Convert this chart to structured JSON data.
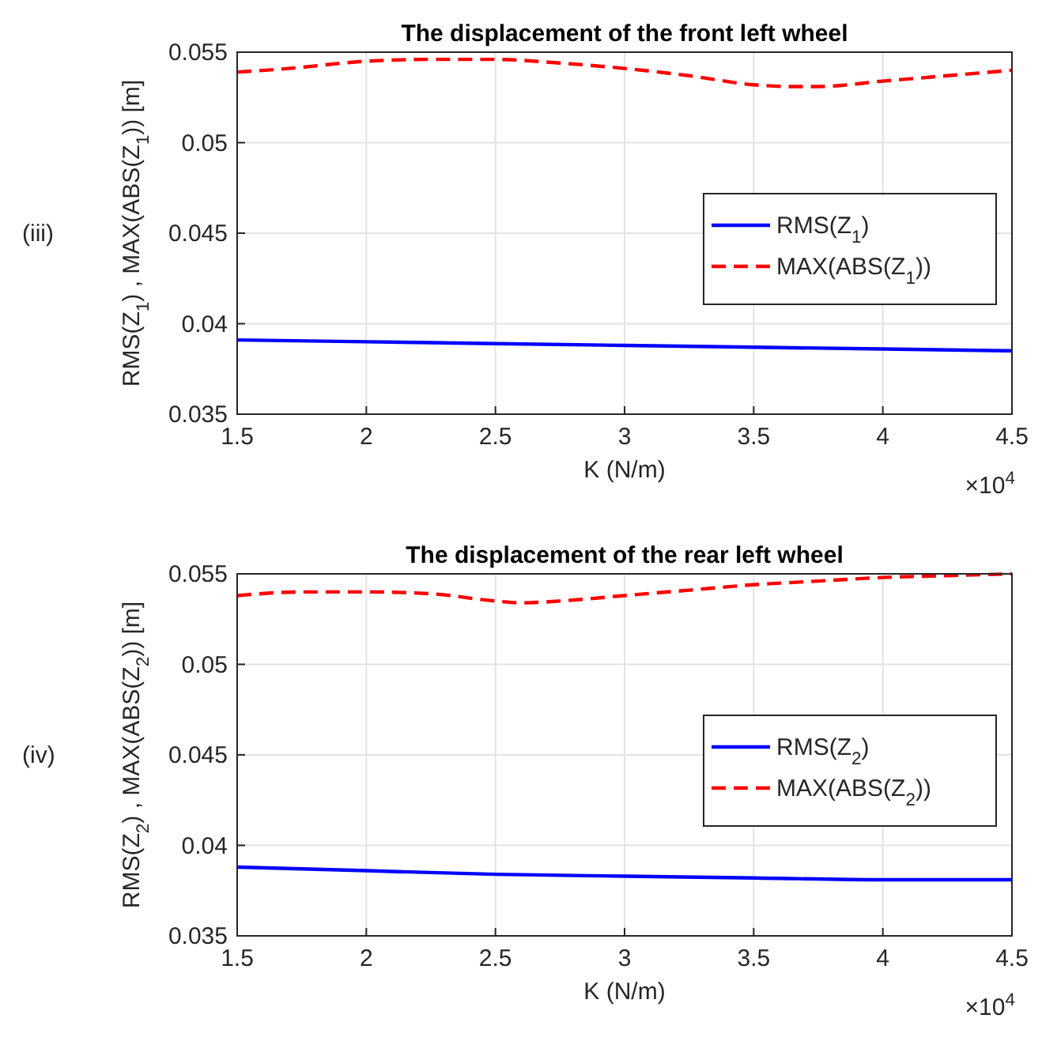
{
  "chart_data": [
    {
      "type": "line",
      "title": "The displacement of the front left wheel",
      "xlabel": "K (N/m)",
      "ylabel": "RMS(Z$_{1}$) , MAX(ABS(Z$_{1}$)) [m]",
      "annotations": [
        "(iii)",
        "×10$^{4}$"
      ],
      "xlim": [
        1.5,
        4.5
      ],
      "xticks": [
        1.5,
        2,
        2.5,
        3,
        3.5,
        4,
        4.5
      ],
      "ylim": [
        0.035,
        0.055
      ],
      "yticks": [
        0.035,
        0.04,
        0.045,
        0.05,
        0.055
      ],
      "grid": true,
      "legend": "right",
      "series": [
        {
          "name": "RMS(Z$_{1}$)",
          "color": "#0000ff",
          "line_style": "solid",
          "x": [
            1.5,
            2,
            2.5,
            3,
            3.5,
            4,
            4.5
          ],
          "values": [
            0.0391,
            0.039,
            0.0389,
            0.0388,
            0.0387,
            0.0386,
            0.0385
          ]
        },
        {
          "name": "MAX(ABS(Z$_{1}$))",
          "color": "#ff0000",
          "line_style": "dashed",
          "x": [
            1.5,
            1.7,
            2,
            2.25,
            2.5,
            2.75,
            3,
            3.25,
            3.5,
            3.65,
            3.75,
            4,
            4.25,
            4.5
          ],
          "values": [
            0.0539,
            0.0541,
            0.0545,
            0.0546,
            0.0546,
            0.0544,
            0.0541,
            0.0537,
            0.0532,
            0.0531,
            0.0531,
            0.0534,
            0.0537,
            0.054
          ]
        }
      ]
    },
    {
      "type": "line",
      "title": "The displacement of the rear left wheel",
      "xlabel": "K (N/m)",
      "ylabel": "RMS(Z$_{2}$) , MAX(ABS(Z$_{2}$)) [m]",
      "annotations": [
        "(iv)",
        "×10$^{4}$"
      ],
      "xlim": [
        1.5,
        4.5
      ],
      "xticks": [
        1.5,
        2,
        2.5,
        3,
        3.5,
        4,
        4.5
      ],
      "ylim": [
        0.035,
        0.055
      ],
      "yticks": [
        0.035,
        0.04,
        0.045,
        0.05,
        0.055
      ],
      "grid": true,
      "legend": "right",
      "series": [
        {
          "name": "RMS(Z$_{2}$)",
          "color": "#0000ff",
          "line_style": "solid",
          "x": [
            1.5,
            2,
            2.5,
            3,
            3.5,
            4,
            4.5
          ],
          "values": [
            0.0388,
            0.0386,
            0.0384,
            0.0383,
            0.0382,
            0.0381,
            0.0381
          ]
        },
        {
          "name": "MAX(ABS(Z$_{2}$))",
          "color": "#ff0000",
          "line_style": "dashed",
          "x": [
            1.5,
            1.75,
            2,
            2.25,
            2.5,
            2.6,
            2.75,
            3,
            3.25,
            3.5,
            3.75,
            4,
            4.25,
            4.5
          ],
          "values": [
            0.0538,
            0.054,
            0.054,
            0.0539,
            0.0535,
            0.0534,
            0.0535,
            0.0538,
            0.0541,
            0.0544,
            0.0546,
            0.0548,
            0.0549,
            0.055
          ]
        }
      ]
    }
  ]
}
